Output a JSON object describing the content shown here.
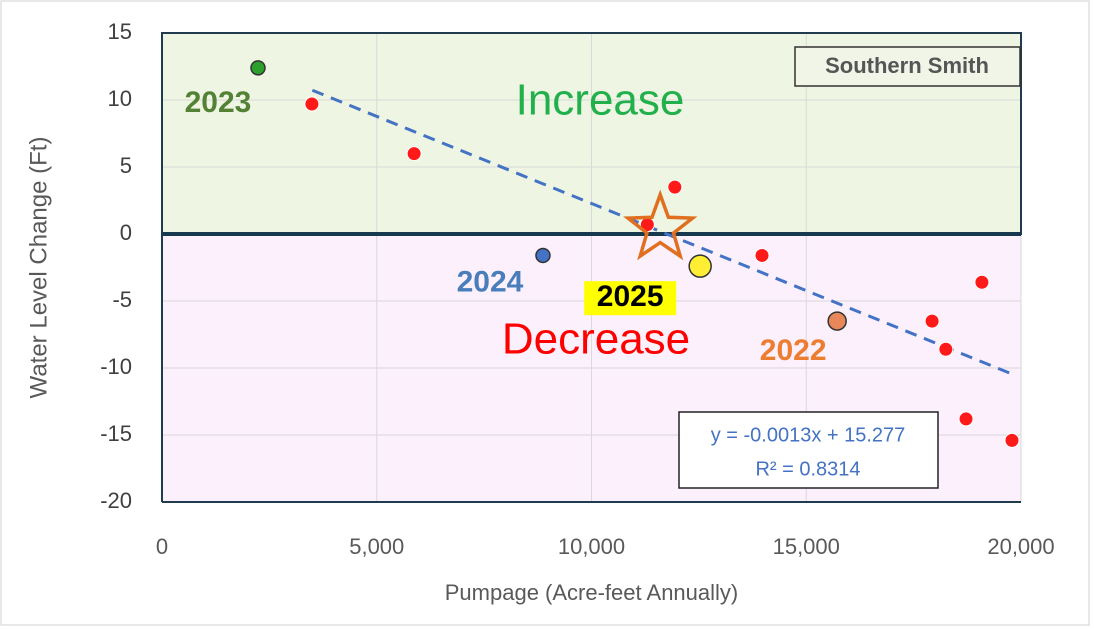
{
  "chart_data": {
    "type": "scatter",
    "panel_label": "Southern Smith",
    "x_label": "Pumpage (Acre-feet Annually)",
    "y_label": "Water Level Change (Ft)",
    "xlim": [
      0,
      20000
    ],
    "ylim": [
      -20,
      15
    ],
    "xticks": [
      0,
      {
        "value": 5000,
        "label": "5,000"
      },
      {
        "value": 10000,
        "label": "10,000"
      },
      {
        "value": 15000,
        "label": "15,000"
      },
      {
        "value": 20000,
        "label": "20,000"
      }
    ],
    "yticks": [
      -20,
      -15,
      -10,
      -5,
      0,
      5,
      10,
      15
    ],
    "grid": true,
    "regions": [
      {
        "name": "Increase",
        "range": [
          0,
          15
        ],
        "color": "#eef5e3",
        "text_color": "#22b04c"
      },
      {
        "name": "Decrease",
        "range": [
          -20,
          0
        ],
        "color": "#fbf0fb",
        "text_color": "#ff0000"
      }
    ],
    "series": [
      {
        "color": "#ff1a1a",
        "x": [
          3490,
          5870,
          11300,
          11940,
          13970,
          17930,
          18250,
          19090,
          18720,
          19790
        ],
        "values": [
          9.7,
          6.0,
          0.7,
          3.5,
          -1.6,
          -6.5,
          -8.6,
          -3.6,
          -13.8,
          -15.4
        ]
      }
    ],
    "highlights": [
      {
        "label": "2023",
        "x": 2235,
        "y": 12.4,
        "color": "#2ca02c",
        "label_color": "#548235"
      },
      {
        "label": "2024",
        "x": 8870,
        "y": -1.6,
        "color": "#4472c4",
        "label_color": "#4a7ebb"
      },
      {
        "label": "2025",
        "x": 12530,
        "y": -2.4,
        "color": "#ffee33",
        "label_color": "#000000"
      },
      {
        "label": "2022",
        "x": 15720,
        "y": -6.5,
        "color": "#e8875a",
        "label_color": "#ed7d31"
      }
    ],
    "star": {
      "x": 11600,
      "y": 0.4,
      "color": "#e07020"
    },
    "trendline": {
      "slope": -0.0013,
      "intercept": 15.277,
      "xrange": [
        3500,
        19800
      ],
      "color": "#4472c4",
      "equation": "y = -0.0013x + 15.277",
      "r_squared": "R² = 0.8314"
    }
  }
}
